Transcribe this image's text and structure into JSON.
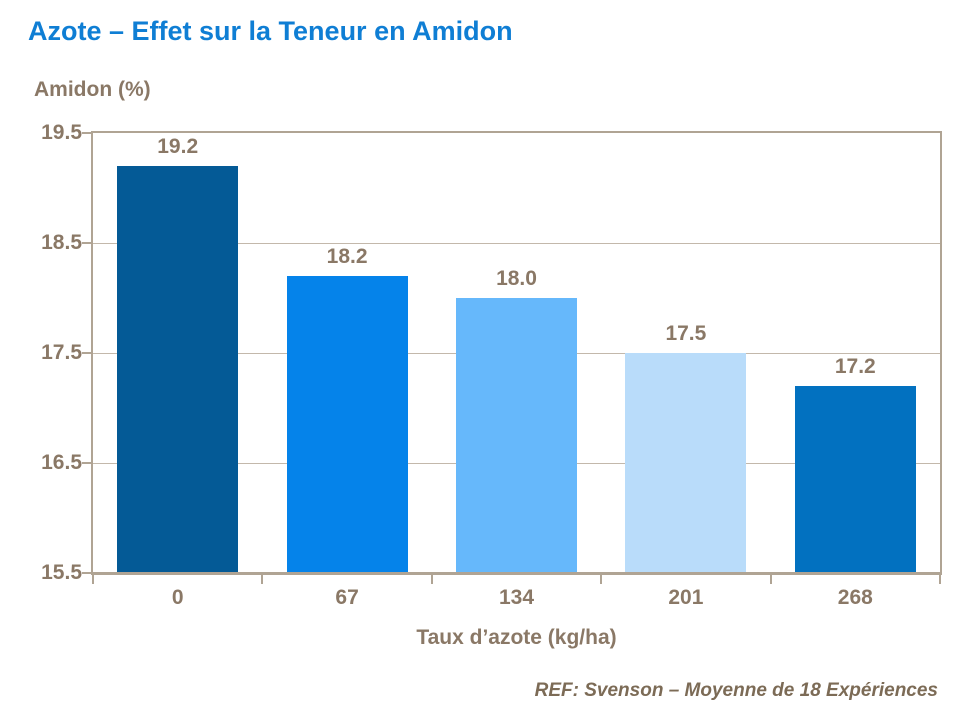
{
  "header": {
    "title": "Azote – Effet sur la Teneur en Amidon"
  },
  "chart_data": {
    "type": "bar",
    "title": "Azote – Effet sur la Teneur en Amidon",
    "categories": [
      "0",
      "67",
      "134",
      "201",
      "268"
    ],
    "values": [
      19.2,
      18.2,
      18.0,
      17.5,
      17.2
    ],
    "value_labels": [
      "19.2",
      "18.2",
      "18.0",
      "17.5",
      "17.2"
    ],
    "bar_colors": [
      "#045a96",
      "#0583ea",
      "#66b8fb",
      "#b9dcfa",
      "#0271c0"
    ],
    "xlabel": "Taux d’azote (kg/ha)",
    "ylabel": "Amidon (%)",
    "ylim": [
      15.5,
      19.5
    ],
    "yticks": [
      19.5,
      18.5,
      17.5,
      16.5,
      15.5
    ],
    "ytick_labels": [
      "19.5",
      "18.5",
      "17.5",
      "16.5",
      "15.5"
    ],
    "grid": "horizontal-major",
    "legend": "none"
  },
  "footer": {
    "reference": "REF: Svenson – Moyenne de 18 Expériences"
  },
  "colors": {
    "title_text": "#0f7ed4",
    "axis_text": "#8a7866",
    "axis_line": "#b0a494",
    "gridline": "#c3b8ab",
    "footer_text": "#7c6b56",
    "background": "#ffffff"
  }
}
